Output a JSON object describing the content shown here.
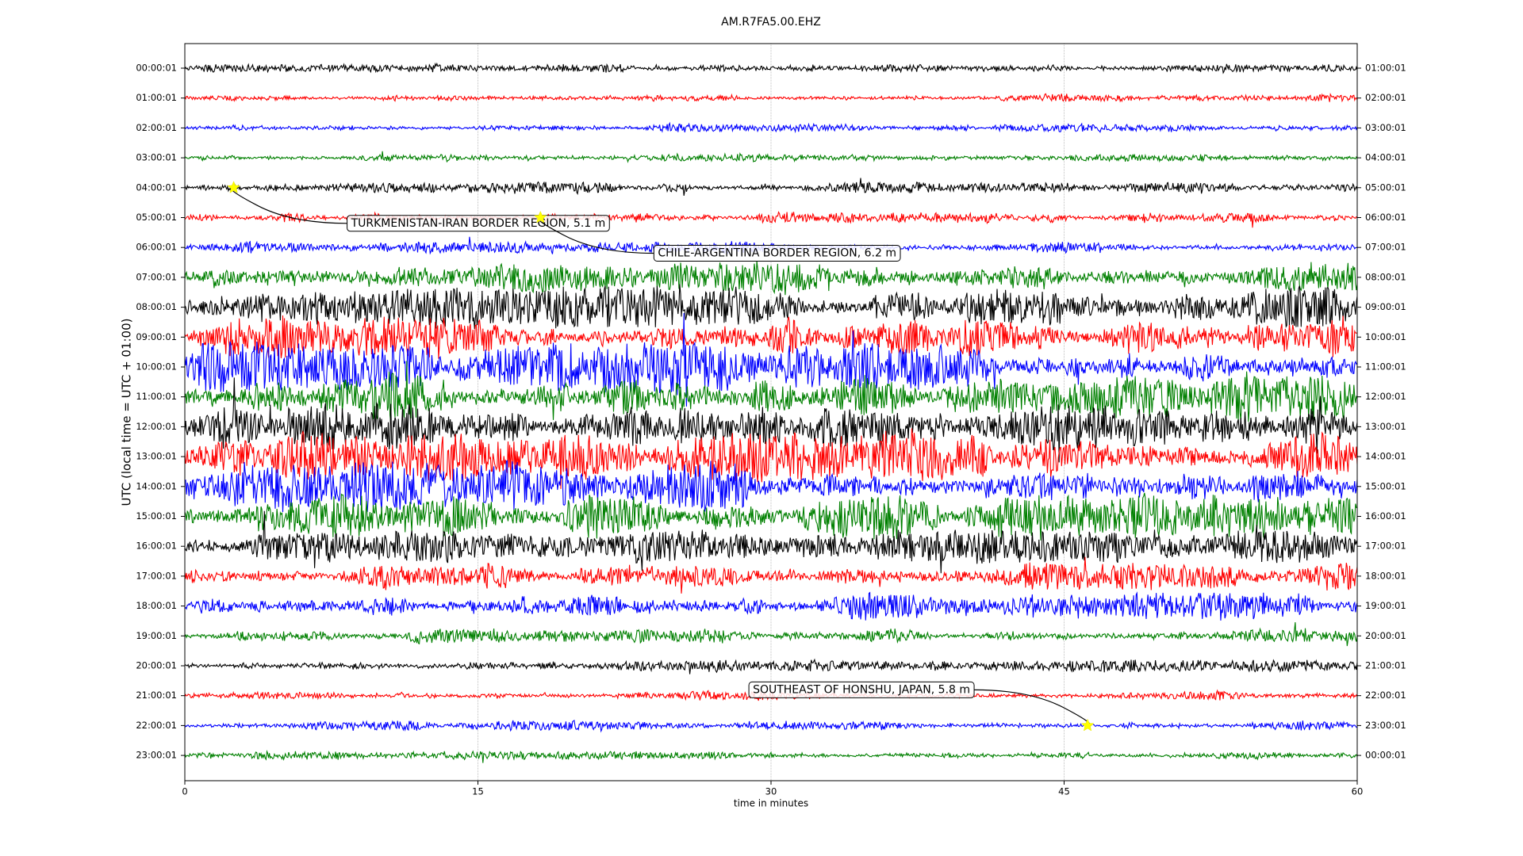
{
  "chart_data": {
    "type": "dayplot",
    "title": "AM.R7FA5.00.EHZ",
    "x_label": "time in minutes",
    "y_label": "UTC (local time = UTC + 01:00)",
    "xlim": [
      0,
      60
    ],
    "xticks": [
      0,
      15,
      30,
      45,
      60
    ],
    "grid": true,
    "series": [
      {
        "label": "00:00:01",
        "right_label": "01:00:01",
        "color": "#000000",
        "amplitude": 0.08
      },
      {
        "label": "01:00:01",
        "right_label": "02:00:01",
        "color": "#ff0000",
        "amplitude": 0.08
      },
      {
        "label": "02:00:01",
        "right_label": "03:00:01",
        "color": "#0000ff",
        "amplitude": 0.08
      },
      {
        "label": "03:00:01",
        "right_label": "04:00:01",
        "color": "#008000",
        "amplitude": 0.08
      },
      {
        "label": "04:00:01",
        "right_label": "05:00:01",
        "color": "#000000",
        "amplitude": 0.12
      },
      {
        "label": "05:00:01",
        "right_label": "06:00:01",
        "color": "#ff0000",
        "amplitude": 0.12
      },
      {
        "label": "06:00:01",
        "right_label": "07:00:01",
        "color": "#0000ff",
        "amplitude": 0.12
      },
      {
        "label": "07:00:01",
        "right_label": "08:00:01",
        "color": "#008000",
        "amplitude": 0.35
      },
      {
        "label": "08:00:01",
        "right_label": "09:00:01",
        "color": "#000000",
        "amplitude": 0.45
      },
      {
        "label": "09:00:01",
        "right_label": "10:00:01",
        "color": "#ff0000",
        "amplitude": 0.45
      },
      {
        "label": "10:00:01",
        "right_label": "11:00:01",
        "color": "#0000ff",
        "amplitude": 0.55
      },
      {
        "label": "11:00:01",
        "right_label": "12:00:01",
        "color": "#008000",
        "amplitude": 0.55
      },
      {
        "label": "12:00:01",
        "right_label": "13:00:01",
        "color": "#000000",
        "amplitude": 0.5
      },
      {
        "label": "13:00:01",
        "right_label": "14:00:01",
        "color": "#ff0000",
        "amplitude": 0.55
      },
      {
        "label": "14:00:01",
        "right_label": "15:00:01",
        "color": "#0000ff",
        "amplitude": 0.55
      },
      {
        "label": "15:00:01",
        "right_label": "16:00:01",
        "color": "#008000",
        "amplitude": 0.5
      },
      {
        "label": "16:00:01",
        "right_label": "17:00:01",
        "color": "#000000",
        "amplitude": 0.35
      },
      {
        "label": "17:00:01",
        "right_label": "18:00:01",
        "color": "#ff0000",
        "amplitude": 0.3
      },
      {
        "label": "18:00:01",
        "right_label": "19:00:01",
        "color": "#0000ff",
        "amplitude": 0.3
      },
      {
        "label": "19:00:01",
        "right_label": "20:00:01",
        "color": "#008000",
        "amplitude": 0.15
      },
      {
        "label": "20:00:01",
        "right_label": "21:00:01",
        "color": "#000000",
        "amplitude": 0.12
      },
      {
        "label": "21:00:01",
        "right_label": "22:00:01",
        "color": "#ff0000",
        "amplitude": 0.1
      },
      {
        "label": "22:00:01",
        "right_label": "23:00:01",
        "color": "#0000ff",
        "amplitude": 0.1
      },
      {
        "label": "23:00:01",
        "right_label": "00:00:01",
        "color": "#008000",
        "amplitude": 0.08
      }
    ],
    "events": [
      {
        "label": "TURKMENISTAN-IRAN BORDER REGION, 5.1 m",
        "row": 4,
        "minute": 2.5
      },
      {
        "label": "CHILE-ARGENTINA BORDER REGION, 6.2 m",
        "row": 5,
        "minute": 18.2
      },
      {
        "label": "SOUTHEAST OF HONSHU, JAPAN, 5.8 m",
        "row": 22,
        "minute": 46.2
      }
    ]
  }
}
